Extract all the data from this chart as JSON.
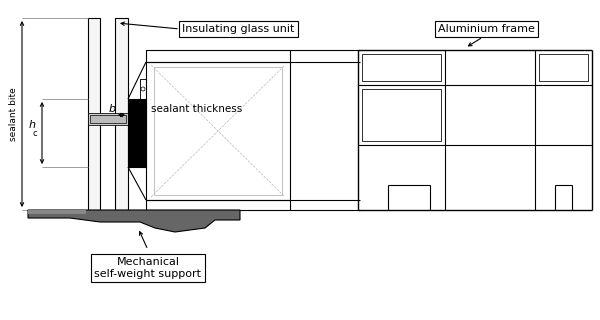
{
  "bg_color": "#ffffff",
  "line_color": "#000000",
  "gray_light": "#aaaaaa",
  "gray_med": "#888888",
  "gray_dark": "#555555",
  "gray_fill": "#999999",
  "annotations": {
    "insulating_glass": "Insulating glass unit",
    "aluminium_frame": "Aluminium frame",
    "sealant_thickness": "sealant thickness",
    "mechanical_support": "Mechanical\nself-weight support",
    "sealant_bite": "sealant bite",
    "hc": "h",
    "hc_sub": "c",
    "b": "b"
  },
  "figsize": [
    6.0,
    3.2
  ],
  "dpi": 100,
  "xlim": [
    0,
    600
  ],
  "ylim": [
    0,
    320
  ]
}
